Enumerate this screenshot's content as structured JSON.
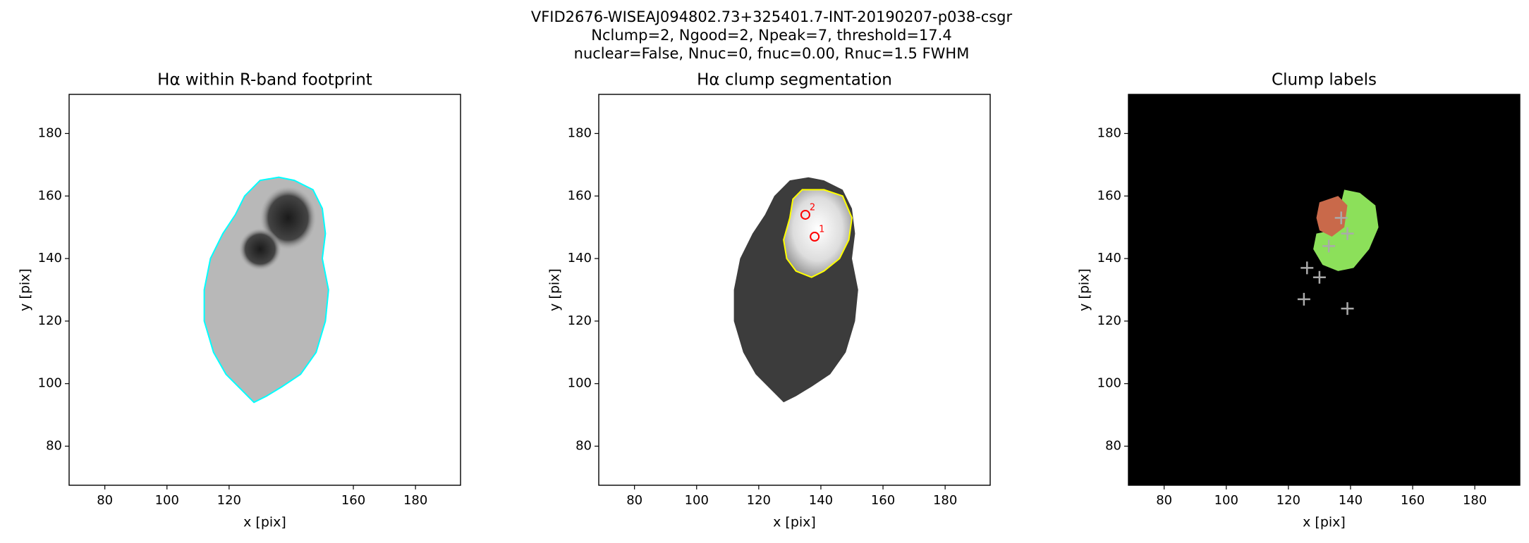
{
  "figure": {
    "title_lines": [
      "VFID2676-WISEAJ094802.73+325401.7-INT-20190207-p038-csgr",
      "Nclump=2, Ngood=2, Npeak=7, threshold=17.4",
      "nuclear=False, Nnuc=0, fnuc=0.00, Rnuc=1.5 FWHM"
    ]
  },
  "chart_data": [
    {
      "type": "image",
      "title": "Hα within R-band footprint",
      "xlabel": "x [pix]",
      "ylabel": "y [pix]",
      "xlim": [
        68.5,
        194.5
      ],
      "ylim": [
        67.5,
        192.5
      ],
      "xticks": [
        80,
        100,
        120,
        160,
        180
      ],
      "yticks": [
        80,
        100,
        120,
        140,
        160,
        180
      ],
      "background": "#ffffff",
      "contour_color": "#00ffff"
    },
    {
      "type": "image",
      "title": "Hα clump segmentation",
      "xlabel": "x [pix]",
      "ylabel": "y [pix]",
      "xlim": [
        68.5,
        194.5
      ],
      "ylim": [
        67.5,
        192.5
      ],
      "xticks": [
        80,
        100,
        120,
        140,
        160,
        180
      ],
      "yticks": [
        80,
        100,
        120,
        140,
        160,
        180
      ],
      "background": "#ffffff",
      "contour_color": "#ffff00",
      "peaks": {
        "x": [
          138,
          135
        ],
        "y": [
          147,
          154
        ],
        "labels": [
          "1",
          "2"
        ],
        "color": "#ff0000"
      }
    },
    {
      "type": "image",
      "title": "Clump labels",
      "xlabel": "x [pix]",
      "ylabel": "y [pix]",
      "xlim": [
        68.5,
        194.5
      ],
      "ylim": [
        67.5,
        192.5
      ],
      "xticks": [
        80,
        100,
        120,
        140,
        160,
        180
      ],
      "yticks": [
        80,
        100,
        120,
        140,
        160,
        180
      ],
      "background": "#000000",
      "clump_colors": [
        "#c9694a",
        "#8ce05a"
      ],
      "peaks": {
        "x": [
          137,
          139,
          133,
          126,
          130,
          125,
          139
        ],
        "y": [
          153,
          148,
          144,
          137,
          134,
          127,
          124
        ],
        "color": "#aaaaaa"
      }
    }
  ]
}
